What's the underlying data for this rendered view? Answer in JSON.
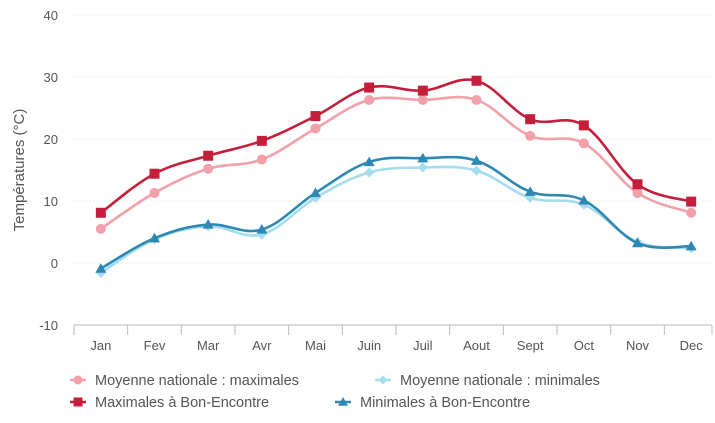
{
  "chart_data": {
    "type": "line",
    "title": "",
    "xlabel": "",
    "ylabel": "Températures (°C)",
    "ylim": [
      -10,
      40
    ],
    "yticks": [
      -10,
      0,
      10,
      20,
      30,
      40
    ],
    "categories": [
      "Jan",
      "Fev",
      "Mar",
      "Avr",
      "Mai",
      "Juin",
      "Juil",
      "Aout",
      "Sept",
      "Oct",
      "Nov",
      "Dec"
    ],
    "grid": true,
    "legend_position": "bottom",
    "series": [
      {
        "name": "Moyenne nationale : maximales",
        "color": "#f2a0aa",
        "marker": "circle",
        "values": [
          5.5,
          11.3,
          15.2,
          16.7,
          21.7,
          26.3,
          26.3,
          26.3,
          20.5,
          19.3,
          11.3,
          8.1
        ]
      },
      {
        "name": "Moyenne nationale : minimales",
        "color": "#a4dcf0",
        "marker": "diamond",
        "values": [
          -1.6,
          3.8,
          5.9,
          4.6,
          10.5,
          14.6,
          15.4,
          14.9,
          10.5,
          9.4,
          3.4,
          2.4
        ]
      },
      {
        "name": "Maximales à Bon-Encontre",
        "color": "#c41e3a",
        "marker": "square",
        "values": [
          8.1,
          14.4,
          17.3,
          19.7,
          23.7,
          28.3,
          27.8,
          29.4,
          23.2,
          22.2,
          12.7,
          9.9
        ]
      },
      {
        "name": "Minimales à Bon-Encontre",
        "color": "#2e88b4",
        "marker": "triangle",
        "values": [
          -0.9,
          4.0,
          6.2,
          5.4,
          11.3,
          16.3,
          16.9,
          16.5,
          11.5,
          10.1,
          3.2,
          2.7
        ]
      }
    ]
  }
}
